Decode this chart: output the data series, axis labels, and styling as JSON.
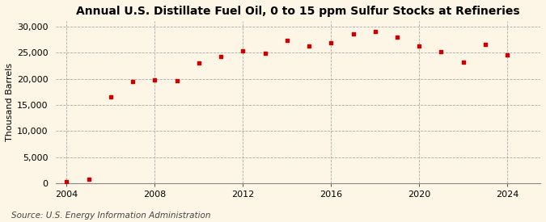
{
  "title": "Annual U.S. Distillate Fuel Oil, 0 to 15 ppm Sulfur Stocks at Refineries",
  "ylabel": "Thousand Barrels",
  "source": "Source: U.S. Energy Information Administration",
  "background_color": "#fdf5e6",
  "marker_color": "#cc0000",
  "years": [
    2004,
    2005,
    2006,
    2007,
    2008,
    2009,
    2010,
    2011,
    2012,
    2013,
    2014,
    2015,
    2016,
    2017,
    2018,
    2019,
    2020,
    2021,
    2022,
    2023,
    2024
  ],
  "values": [
    300,
    700,
    16500,
    19500,
    19800,
    19600,
    23000,
    24200,
    25300,
    24900,
    27300,
    26200,
    26800,
    28500,
    29000,
    27900,
    26200,
    25200,
    23100,
    26600,
    24500
  ],
  "xlim": [
    2003.5,
    2025.5
  ],
  "ylim": [
    0,
    31000
  ],
  "yticks": [
    0,
    5000,
    10000,
    15000,
    20000,
    25000,
    30000
  ],
  "xticks": [
    2004,
    2008,
    2012,
    2016,
    2020,
    2024
  ],
  "grid_color": "#aaaaaa",
  "title_fontsize": 10,
  "label_fontsize": 8,
  "tick_fontsize": 8,
  "source_fontsize": 7.5
}
